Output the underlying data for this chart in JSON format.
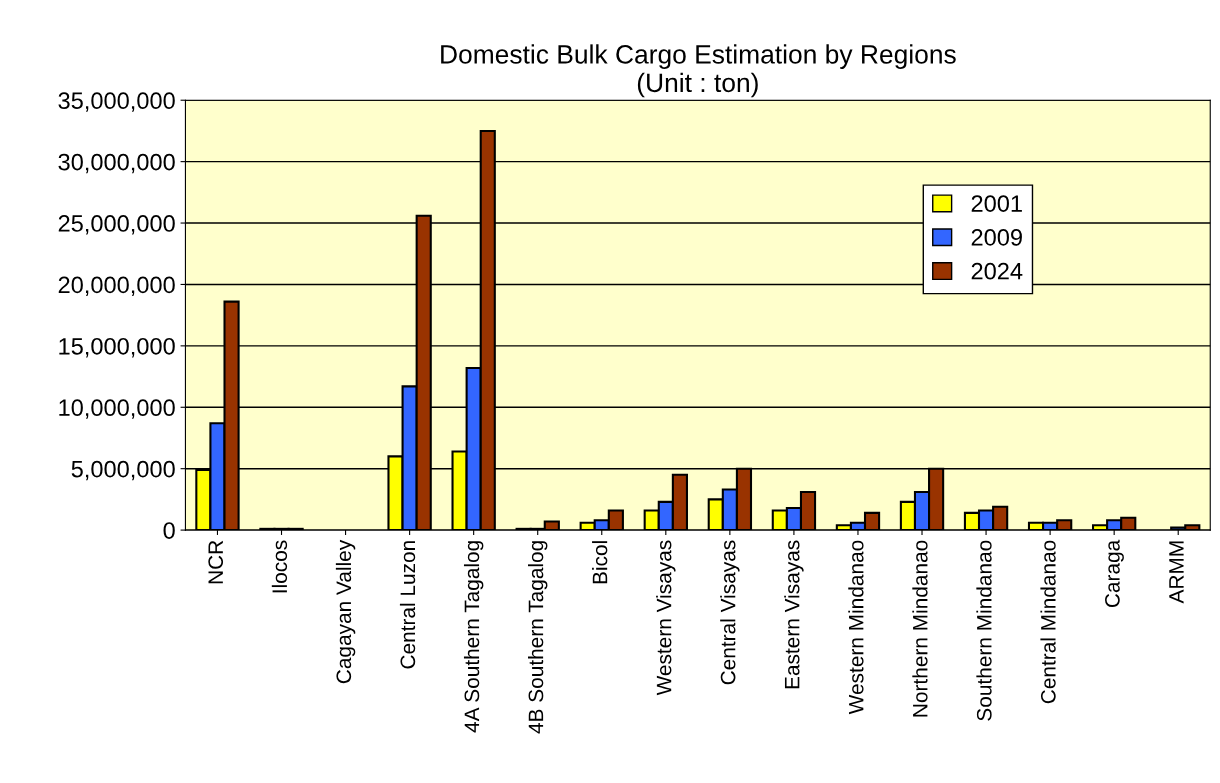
{
  "chart_data": {
    "type": "bar",
    "title": "Domestic Bulk Cargo Estimation by Regions\n(Unit : ton)",
    "categories": [
      "NCR",
      "Ilocos",
      "Cagayan Valley",
      "Central Luzon",
      "4A Southern Tagalog",
      "4B Southern Tagalog",
      "Bicol",
      "Western Visayas",
      "Central Visayas",
      "Eastern Visayas",
      "Western Mindanao",
      "Northern Mindanao",
      "Southern Mindanao",
      "Central Mindanao",
      "Caraga",
      "ARMM"
    ],
    "series": [
      {
        "name": "2001",
        "color": "#ffff00",
        "values": [
          4900000,
          100000,
          null,
          6000000,
          6400000,
          100000,
          600000,
          1600000,
          2500000,
          1600000,
          400000,
          2300000,
          1400000,
          600000,
          400000,
          null
        ]
      },
      {
        "name": "2009",
        "color": "#3366ff",
        "values": [
          8700000,
          100000,
          null,
          11700000,
          13200000,
          100000,
          800000,
          2300000,
          3300000,
          1800000,
          600000,
          3100000,
          1600000,
          600000,
          800000,
          200000
        ]
      },
      {
        "name": "2024",
        "color": "#993300",
        "values": [
          18600000,
          100000,
          null,
          25600000,
          32500000,
          700000,
          1600000,
          4500000,
          5000000,
          3100000,
          1400000,
          5000000,
          1900000,
          800000,
          1000000,
          400000
        ]
      }
    ],
    "ylim": [
      0,
      35000000
    ],
    "yticks": [
      0,
      {
        "value": 5000000,
        "label": "5,000,000"
      },
      {
        "value": 10000000,
        "label": "10,000,000"
      },
      {
        "value": 15000000,
        "label": "15,000,000"
      },
      {
        "value": 20000000,
        "label": "20,000,000"
      },
      {
        "value": 25000000,
        "label": "25,000,000"
      },
      {
        "value": 30000000,
        "label": "30,000,000"
      },
      {
        "value": 35000000,
        "label": "35,000,000"
      }
    ],
    "grid": "y",
    "legend": "top right"
  }
}
